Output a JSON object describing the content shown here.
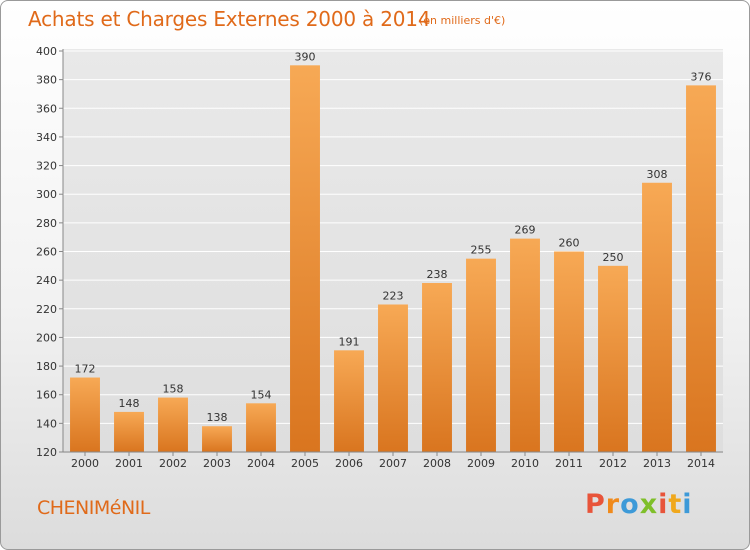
{
  "header": {
    "title": "Achats et Charges Externes 2000 à 2014",
    "subtitle": "(en milliers d'€)"
  },
  "footer": {
    "town": "CHENIMéNIL",
    "logo": "Proxiti"
  },
  "colors": {
    "accent": "#e06a1a",
    "bar_light": "#f7a955",
    "bar_dark": "#d9751f",
    "logo_letters": [
      "#e8543a",
      "#f08a1c",
      "#3d9ad8",
      "#7fbf2a",
      "#e8543a",
      "#f0a81c",
      "#3d9ad8"
    ]
  },
  "chart_data": {
    "type": "bar",
    "categories": [
      "2000",
      "2001",
      "2002",
      "2003",
      "2004",
      "2005",
      "2006",
      "2007",
      "2008",
      "2009",
      "2010",
      "2011",
      "2012",
      "2013",
      "2014"
    ],
    "values": [
      172,
      148,
      158,
      138,
      154,
      390,
      191,
      223,
      238,
      255,
      269,
      260,
      250,
      308,
      376
    ],
    "ylim": [
      120,
      400
    ],
    "yticks": [
      120,
      140,
      160,
      180,
      200,
      220,
      240,
      260,
      280,
      300,
      320,
      340,
      360,
      380,
      400
    ],
    "grid": true
  }
}
